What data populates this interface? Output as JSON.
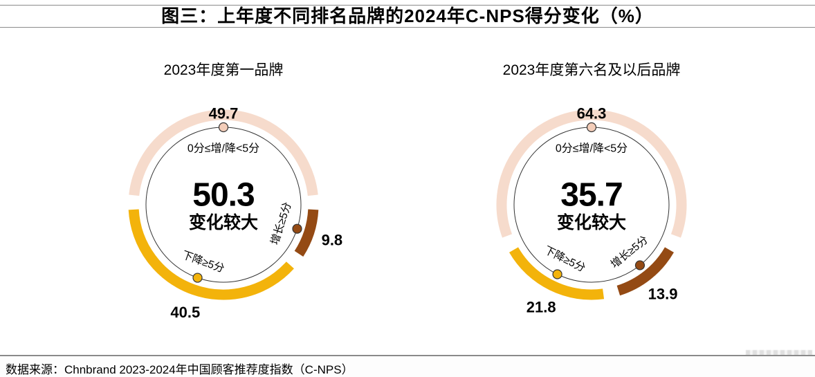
{
  "page": {
    "title": "图三：上年度不同排名品牌的2024年C-NPS得分变化（%）",
    "footer": "数据来源：Chnbrand 2023-2024年中国顾客推荐度指数（C-NPS）"
  },
  "colors": {
    "peach": "#f6dbcc",
    "peach_marker": "#f3cdb9",
    "gold": "#f3b30b",
    "brown": "#944a14",
    "ink": "#000000",
    "circle_stroke": "#333333",
    "divider_gray": "#8a8a8a"
  },
  "chart_data": [
    {
      "type": "donut",
      "title": "2023年度第一品牌",
      "unit": "%",
      "center_value": "50.3",
      "center_label": "变化较大",
      "segments": [
        {
          "label": "0分≤增/降<5分",
          "value": 49.7,
          "color": "#f6dbcc",
          "marker_color": "#f3cdb9"
        },
        {
          "label": "增长≥5分",
          "value": 9.8,
          "color": "#944a14",
          "marker_color": "#944a14"
        },
        {
          "label": "下降≥5分",
          "value": 40.5,
          "color": "#f3b30b",
          "marker_color": "#f3b30b"
        }
      ]
    },
    {
      "type": "donut",
      "title": "2023年度第六名及以后品牌",
      "unit": "%",
      "center_value": "35.7",
      "center_label": "变化较大",
      "segments": [
        {
          "label": "0分≤增/降<5分",
          "value": 64.3,
          "color": "#f6dbcc",
          "marker_color": "#f3cdb9"
        },
        {
          "label": "增长≥5分",
          "value": 13.9,
          "color": "#944a14",
          "marker_color": "#944a14"
        },
        {
          "label": "下降≥5分",
          "value": 21.8,
          "color": "#f3b30b",
          "marker_color": "#f3b30b"
        }
      ]
    }
  ]
}
